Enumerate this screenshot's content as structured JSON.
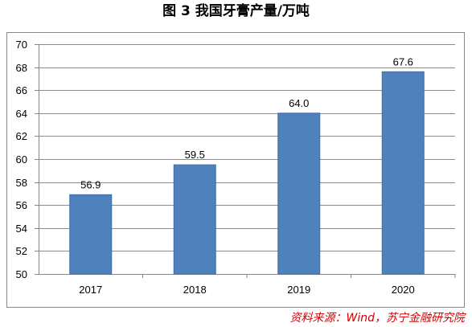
{
  "colors": {
    "bar": "#4F81BD",
    "bar_edge": "#3F6FAA",
    "source": "#D40000"
  },
  "source": "资料来源：Wind，苏宁金融研究院",
  "chart_data": {
    "type": "bar",
    "title": "图 3 我国牙膏产量/万吨",
    "categories": [
      "2017",
      "2018",
      "2019",
      "2020"
    ],
    "values": [
      56.9,
      59.5,
      64.0,
      67.6
    ],
    "data_labels": [
      "56.9",
      "59.5",
      "64.0",
      "67.6"
    ],
    "ylim": [
      50,
      70
    ],
    "yticks": [
      50,
      52,
      54,
      56,
      58,
      60,
      62,
      64,
      66,
      68,
      70
    ],
    "grid": true,
    "legend": "none"
  }
}
